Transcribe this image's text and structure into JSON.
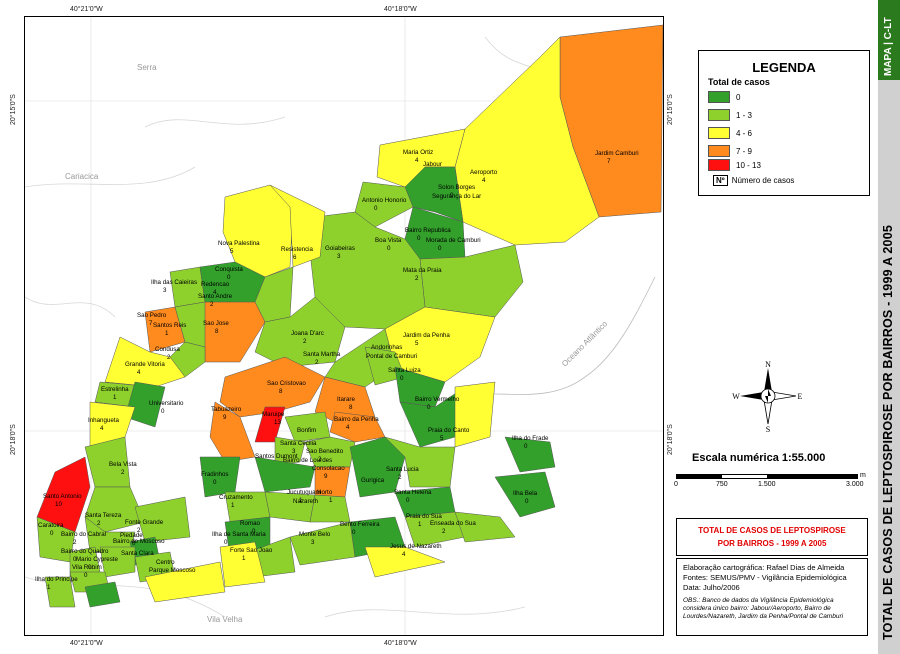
{
  "coords": {
    "top": [
      "40°21'0\"W",
      "40°18'0\"W"
    ],
    "bottom": [
      "40°21'0\"W",
      "40°18'0\"W"
    ],
    "left": [
      "20°15'0\"S",
      "20°18'0\"S"
    ],
    "right": [
      "20°15'0\"S",
      "20°18'0\"S"
    ]
  },
  "regions": {
    "serra": "Serra",
    "cariacica": "Cariacica",
    "vila_velha": "Vila Velha",
    "ocean": "Oceano Atlântico"
  },
  "legend": {
    "title": "LEGENDA",
    "subtitle": "Total de casos",
    "classes": [
      {
        "label": "0",
        "color": "#33a02c"
      },
      {
        "label": "1 - 3",
        "color": "#8ed12c"
      },
      {
        "label": "4 - 6",
        "color": "#ffff33"
      },
      {
        "label": "7 - 9",
        "color": "#ff8a1e"
      },
      {
        "label": "10 - 13",
        "color": "#ff1010"
      }
    ],
    "number_box": "Nº",
    "number_label": "Número de casos"
  },
  "compass": {
    "n": "N",
    "s": "S",
    "e": "E",
    "w": "W"
  },
  "scale": {
    "label": "Escala numérica   1:55.000",
    "ticks": [
      "0",
      "750",
      "1.500",
      "3.000"
    ],
    "unit": "m"
  },
  "map_title": {
    "line1": "TOTAL DE CASOS DE LEPTOSPIROSE",
    "line2": "POR BAIRROS - 1999 A 2005"
  },
  "info": {
    "line1": "Elaboração cartográfica: Rafael Dias de Almeida",
    "line2": "Fontes: SEMUS/PMV - Vigilância Epidemiológica",
    "line3": "Data: Julho/2006",
    "obs": "OBS.: Banco de dados da Vigilância Epidemiológica considera único bairro: Jabour/Aeroporto, Bairro de Lourdes/Nazareth, Jardim da Penha/Pontal de Camburi"
  },
  "side": {
    "tag": "MAPA | C-LT",
    "title": "TOTAL DE CASOS DE LEPTOSPIROSE POR BAIRROS - 1999 A 2005"
  },
  "neighborhoods": [
    {
      "name": "Maria Ortiz",
      "count": "4"
    },
    {
      "name": "Jabour",
      "count": ""
    },
    {
      "name": "Aeroporto",
      "count": "4"
    },
    {
      "name": "Jardim Camburi",
      "count": "7"
    },
    {
      "name": "Solon Borges",
      "count": "0"
    },
    {
      "name": "Segurança do Lar",
      "count": ""
    },
    {
      "name": "Antonio Honorio",
      "count": "0"
    },
    {
      "name": "Boa Vista",
      "count": "0"
    },
    {
      "name": "Bairro Republica",
      "count": "0"
    },
    {
      "name": "Morada de Camburi",
      "count": "0"
    },
    {
      "name": "Goiabeiras",
      "count": "3"
    },
    {
      "name": "Mata da Praia",
      "count": "2"
    },
    {
      "name": "Nova Palestina",
      "count": "5"
    },
    {
      "name": "Resistencia",
      "count": "6"
    },
    {
      "name": "Ilha das Caieiras",
      "count": "3"
    },
    {
      "name": "Conquista",
      "count": "0"
    },
    {
      "name": "Redencao",
      "count": "4"
    },
    {
      "name": "Santo Andre",
      "count": "2"
    },
    {
      "name": "Sao Pedro",
      "count": "7"
    },
    {
      "name": "Santos Reis",
      "count": "1"
    },
    {
      "name": "Sao Jose",
      "count": "8"
    },
    {
      "name": "Joana D'arc",
      "count": "2"
    },
    {
      "name": "Jardim da Penha",
      "count": "5"
    },
    {
      "name": "Condusa",
      "count": "2"
    },
    {
      "name": "Grande Vitoria",
      "count": "4"
    },
    {
      "name": "Santa Martha",
      "count": "2"
    },
    {
      "name": "Andorinhas",
      "count": ""
    },
    {
      "name": "Pontal de Camburi",
      "count": ""
    },
    {
      "name": "Santa Luiza",
      "count": "0"
    },
    {
      "name": "Estrelinha",
      "count": "1"
    },
    {
      "name": "Universitario",
      "count": "0"
    },
    {
      "name": "Sao Cristovao",
      "count": "8"
    },
    {
      "name": "Tabuazeiro",
      "count": "9"
    },
    {
      "name": "Itarare",
      "count": "8"
    },
    {
      "name": "Bairro Vermelho",
      "count": "0"
    },
    {
      "name": "Inhangueta",
      "count": "4"
    },
    {
      "name": "Maruipe",
      "count": "13"
    },
    {
      "name": "Bairro da Penha",
      "count": "4"
    },
    {
      "name": "Praia do Canto",
      "count": "5"
    },
    {
      "name": "Ilha do Frade",
      "count": "0"
    },
    {
      "name": "Bonfim",
      "count": ""
    },
    {
      "name": "Santa Cecilia",
      "count": "3"
    },
    {
      "name": "Sao Benedito",
      "count": "2"
    },
    {
      "name": "Bela Vista",
      "count": "2"
    },
    {
      "name": "Santos Dumont",
      "count": ""
    },
    {
      "name": "Fradinhos",
      "count": "0"
    },
    {
      "name": "Bairro de Lourdes",
      "count": ""
    },
    {
      "name": "Consolacao",
      "count": "9"
    },
    {
      "name": "Santa Lucia",
      "count": "2"
    },
    {
      "name": "Gurigica",
      "count": ""
    },
    {
      "name": "Santo Antonio",
      "count": "10"
    },
    {
      "name": "Cruzamento",
      "count": "1"
    },
    {
      "name": "Jucutuquara",
      "count": "1"
    },
    {
      "name": "Nazareth",
      "count": ""
    },
    {
      "name": "Horto",
      "count": "1"
    },
    {
      "name": "Santa Helena",
      "count": "0"
    },
    {
      "name": "Ilha Bela",
      "count": "0"
    },
    {
      "name": "Santa Tereza",
      "count": "2"
    },
    {
      "name": "Fonte Grande",
      "count": "2"
    },
    {
      "name": "Romao",
      "count": "0"
    },
    {
      "name": "Bento Ferreira",
      "count": "0"
    },
    {
      "name": "Praia do Sua",
      "count": "1"
    },
    {
      "name": "Caratoira",
      "count": "0"
    },
    {
      "name": "Bairro do Cabral",
      "count": "2"
    },
    {
      "name": "Piedade",
      "count": "0"
    },
    {
      "name": "Ilha de Santa Maria",
      "count": "0"
    },
    {
      "name": "Monte Belo",
      "count": "3"
    },
    {
      "name": "Enseada do Sua",
      "count": "2"
    },
    {
      "name": "Bairro do Quadro",
      "count": "0"
    },
    {
      "name": "Bairro do Moscoso",
      "count": ""
    },
    {
      "name": "Mario Cypreste",
      "count": "0"
    },
    {
      "name": "Santa Clara",
      "count": ""
    },
    {
      "name": "Forte Sao Joao",
      "count": "1"
    },
    {
      "name": "Jesus de Nazareth",
      "count": "4"
    },
    {
      "name": "Vila Rubim",
      "count": "0"
    },
    {
      "name": "Centro",
      "count": ""
    },
    {
      "name": "Parque Moscoso",
      "count": ""
    },
    {
      "name": "Ilha do Principe",
      "count": "1"
    }
  ]
}
